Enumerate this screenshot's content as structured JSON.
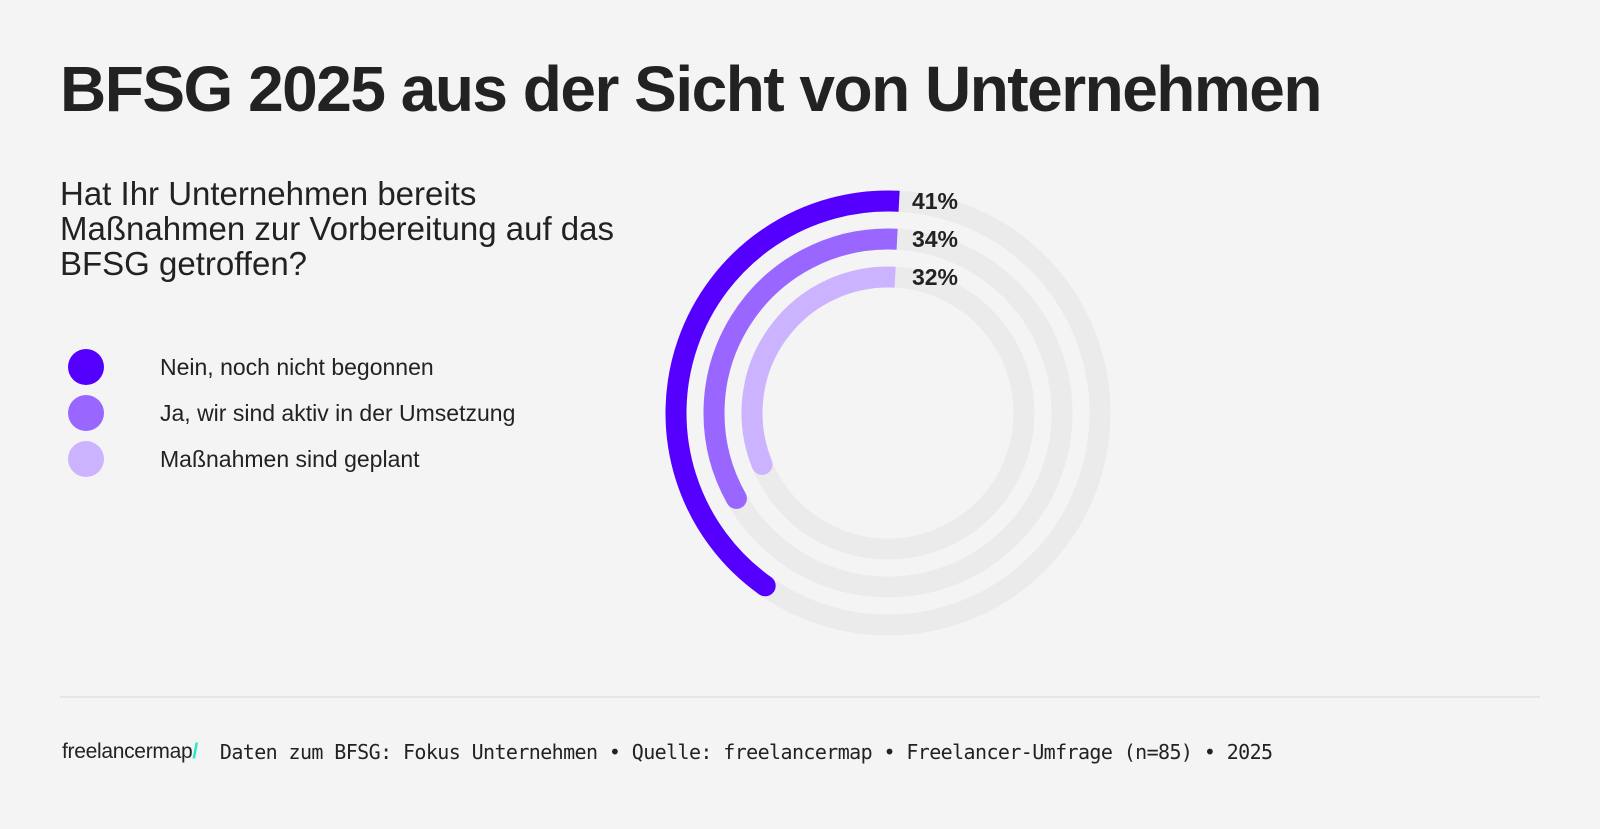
{
  "header": {
    "title": "BFSG 2025 aus der Sicht von Unternehmen"
  },
  "question": "Hat Ihr Unternehmen bereits Maßnahmen zur Vorbereitung auf das BFSG getroffen?",
  "legend": [
    {
      "label": "Nein, noch nicht begonnen",
      "color": "#5500ff"
    },
    {
      "label": "Ja, wir sind aktiv in der Umsetzung",
      "color": "#9966ff"
    },
    {
      "label": "Maßnahmen sind geplant",
      "color": "#ccb3ff"
    }
  ],
  "chart_data": {
    "type": "radial-bar",
    "title": "Hat Ihr Unternehmen bereits Maßnahmen zur Vorbereitung auf das BFSG getroffen?",
    "categories": [
      "Nein, noch nicht begonnen",
      "Ja, wir sind aktiv in der Umsetzung",
      "Maßnahmen sind geplant"
    ],
    "values": [
      41,
      34,
      32
    ],
    "unit": "%",
    "data_labels": [
      "41%",
      "34%",
      "32%"
    ],
    "colors": [
      "#5500ff",
      "#9966ff",
      "#ccb3ff"
    ],
    "track_color": "#ebebeb",
    "max": 100,
    "direction": "counter-clockwise from top",
    "legend_position": "left"
  },
  "footer": {
    "logo": "freelancermap",
    "logo_slash": "/",
    "source": "Daten zum BFSG: Fokus Unternehmen • Quelle: freelancermap • Freelancer-Umfrage (n=85) • 2025"
  }
}
